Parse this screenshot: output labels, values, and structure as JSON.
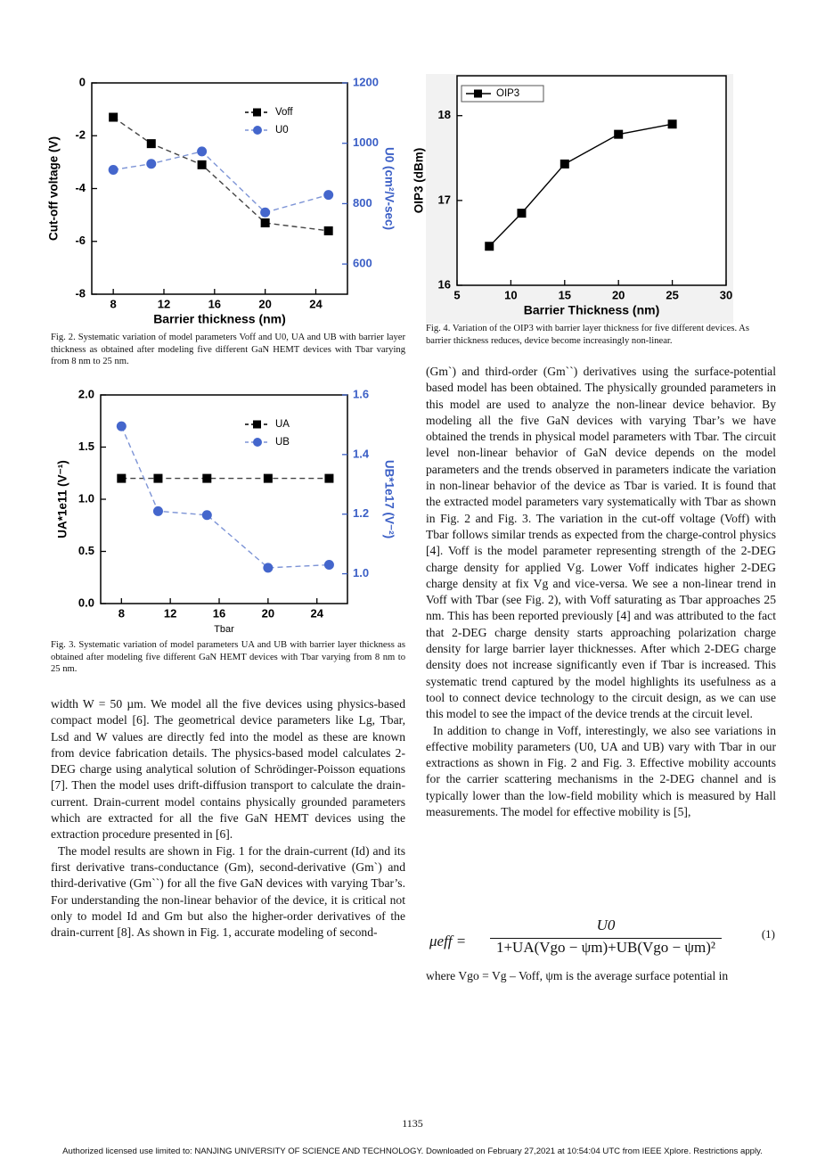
{
  "chart_data": [
    {
      "type": "line",
      "caption": "Fig. 2. Systematic variation of model parameters Voff and U0, UA and UB with barrier layer thickness as obtained after modeling five different GaN HEMT devices with Tbar varying from 8 nm to 25 nm.",
      "x_label": "Barrier thickness (nm)",
      "y_label": "Cut-off voltage (V)",
      "y2_label": "U0 (cm²/V-sec)",
      "x": [
        8,
        11,
        15,
        20,
        25
      ],
      "xlim": [
        6.3,
        26.5
      ],
      "xticks": [
        8,
        12,
        16,
        20,
        24
      ],
      "ylim": [
        -8,
        0
      ],
      "yticks": [
        -8,
        -6,
        -4,
        -2,
        0
      ],
      "y2lim": [
        500,
        1200
      ],
      "y2ticks": [
        600,
        800,
        1000,
        1200
      ],
      "y2color": "#3b5fc6",
      "legend": "upper right",
      "series": [
        {
          "name": "Voff",
          "color": "#000000",
          "marker": "square",
          "line": "dashed",
          "values": [
            -1.3,
            -2.3,
            -3.1,
            -5.3,
            -5.6
          ]
        },
        {
          "name": "U0",
          "color": "#4466cc",
          "marker": "circle",
          "line": "dashed",
          "axis": "y2",
          "values": [
            912,
            932,
            973,
            771,
            829
          ]
        }
      ]
    },
    {
      "type": "line",
      "caption": "Fig. 3. Systematic variation of model parameters UA and UB with barrier layer thickness as obtained after modeling five different GaN HEMT devices with Tbar varying from 8 nm to 25 nm.",
      "x_label": "Tbar",
      "y_label": "UA*1e11 (V⁻¹)",
      "y2_label": "UB*1e17 (V⁻²)",
      "x": [
        8,
        11,
        15,
        20,
        25
      ],
      "xlim": [
        6.3,
        26.5
      ],
      "xticks": [
        8,
        12,
        16,
        20,
        24
      ],
      "ylim": [
        0,
        2
      ],
      "yticks": [
        {
          "value": 0,
          "label": "0.0"
        },
        0.5,
        {
          "value": 1,
          "label": "1.0"
        },
        1.5,
        {
          "value": 2,
          "label": "2.0"
        }
      ],
      "y2lim": [
        0.9,
        1.6
      ],
      "y2ticks": [
        {
          "value": 1,
          "label": "1.0"
        },
        1.2,
        1.4,
        1.6
      ],
      "y2color": "#3b5fc6",
      "legend": "upper right",
      "series": [
        {
          "name": "UA",
          "color": "#000000",
          "marker": "square",
          "line": "dashed",
          "values": [
            1.2,
            1.2,
            1.2,
            1.2,
            1.2
          ]
        },
        {
          "name": "UB",
          "color": "#4466cc",
          "marker": "circle",
          "line": "dashed",
          "axis": "y2",
          "values": [
            1.495,
            1.21,
            1.197,
            1.02,
            1.03
          ]
        }
      ]
    },
    {
      "type": "line",
      "caption": "Fig. 4. Variation of the OIP3 with barrier layer thickness for five different devices. As barrier thickness reduces, device become increasingly non-linear.",
      "x_label": "Barrier Thickness (nm)",
      "y_label": "OIP3 (dBm)",
      "x": [
        8,
        11,
        15,
        20,
        25
      ],
      "xlim": [
        5,
        30
      ],
      "xticks": [
        5,
        10,
        15,
        20,
        25,
        30
      ],
      "ylim": [
        16,
        18.47
      ],
      "yticks": [
        16,
        17,
        18
      ],
      "legend": "upper left",
      "series": [
        {
          "name": "OIP3",
          "color": "#000000",
          "marker": "square",
          "line": "solid",
          "values": [
            16.46,
            16.85,
            17.43,
            17.78,
            17.9
          ]
        }
      ]
    }
  ],
  "left_column": [
    "width W = 50 µm. We model all the five devices using physics-based compact model [6]. The geometrical device parameters like Lg, Tbar, Lsd and W values are directly fed into the model as these are known from device fabrication details. The physics-based model calculates 2-DEG charge using analytical solution of Schrödinger-Poisson equations [7]. Then the model uses drift-diffusion transport to calculate the drain-current. Drain-current model contains physically grounded parameters which are extracted for all the five GaN HEMT devices using the extraction procedure presented in [6].",
    "The model results are shown in Fig. 1 for the drain-current (Id) and its first derivative trans-conductance (Gm), second-derivative (Gm`) and third-derivative (Gm``) for all the five GaN devices with varying Tbar’s. For understanding the non-linear behavior of the device, it is critical not only to model Id and Gm but also the higher-order derivatives of the drain-current [8]. As shown in Fig. 1, accurate modeling of second-"
  ],
  "right_column": [
    "(Gm`) and third-order (Gm``) derivatives using the surface-potential based model has been obtained. The physically grounded parameters in this model are used to analyze the non-linear device behavior. By modeling all the five GaN devices with varying Tbar’s we have obtained the trends in physical model parameters with Tbar. The circuit level non-linear behavior of GaN device depends on the model parameters and the trends observed in parameters indicate the variation in non-linear behavior of the device as Tbar is varied. It is found that the extracted model parameters vary systematically with Tbar as shown in Fig. 2 and Fig. 3. The variation in the cut-off voltage (Voff) with Tbar follows similar trends as expected from the charge-control physics [4]. Voff is the model parameter representing strength of the 2-DEG charge density for applied Vg. Lower Voff indicates higher 2-DEG charge density at fix Vg and vice-versa. We see a non-linear trend in Voff with Tbar (see Fig. 2), with Voff saturating as Tbar approaches 25 nm. This has been reported previously [4] and was attributed to the fact that 2-DEG charge density starts approaching polarization charge density for large barrier layer thicknesses. After which 2-DEG charge density does not increase significantly even if Tbar is increased. This systematic trend captured by the model highlights its usefulness as a tool to connect device technology to the circuit design, as we can use this model to see the impact of the device trends at the circuit level.",
    "In addition to change in Voff, interestingly, we also see variations in effective mobility parameters (U0, UA and UB) vary with Tbar in our extractions as shown in Fig. 2 and Fig. 3. Effective mobility accounts for the carrier scattering mechanisms in the 2-DEG channel and is typically lower than the low-field mobility which is measured by Hall measurements. The model for effective mobility is [5],"
  ],
  "equation": {
    "lhs": "μeff =",
    "numerator": "U0",
    "denominator": "1+UA(Vgo − ψm)+UB(Vgo − ψm)²",
    "number": "(1)"
  },
  "after_equation": "where Vgo = Vg – Voff, ψm is the average surface potential in",
  "page_number": "1135",
  "footer": "Authorized licensed use limited to: NANJING UNIVERSITY OF SCIENCE AND TECHNOLOGY. Downloaded on February 27,2021 at 10:54:04 UTC from IEEE Xplore. Restrictions apply."
}
